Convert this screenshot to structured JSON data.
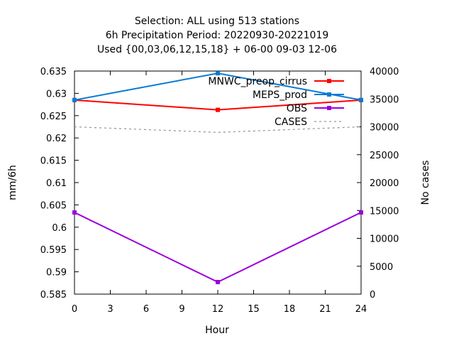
{
  "chart_data": {
    "type": "line",
    "title": [
      "Selection: ALL using   513 stations",
      "6h Precipitation    Period: 20220930-20221019",
      "Used {00,03,06,12,15,18} + 06-00 09-03 12-06"
    ],
    "xlabel": "Hour",
    "ylabel": "mm/6h",
    "y2label": "No cases",
    "x": [
      0,
      12,
      24
    ],
    "xlim": [
      0,
      24
    ],
    "xticks": [
      "0",
      "3",
      "6",
      "9",
      "12",
      "15",
      "18",
      "21",
      "24"
    ],
    "ylim": [
      0.585,
      0.635
    ],
    "yticks": [
      "0.585",
      "0.59",
      "0.595",
      "0.6",
      "0.605",
      "0.61",
      "0.615",
      "0.62",
      "0.625",
      "0.63",
      "0.635"
    ],
    "y2lim": [
      0,
      40000
    ],
    "y2ticks": [
      "0",
      "5000",
      "10000",
      "15000",
      "20000",
      "25000",
      "30000",
      "35000",
      "40000"
    ],
    "grid": false,
    "legend_position": "top-right",
    "series": [
      {
        "name": "MNWC_preop_cirrus",
        "color": "#ff0000",
        "marker": "square",
        "axis": "y",
        "values": [
          0.6285,
          0.6263,
          0.6285
        ]
      },
      {
        "name": "MEPS_prod",
        "color": "#0a7ad4",
        "marker": "square",
        "axis": "y",
        "values": [
          0.6285,
          0.6345,
          0.6285
        ]
      },
      {
        "name": "OBS",
        "color": "#9900dd",
        "marker": "square",
        "axis": "y",
        "values": [
          0.6033,
          0.5877,
          0.6033
        ]
      },
      {
        "name": "CASES",
        "color": "#999999",
        "marker": "none",
        "dashed": true,
        "axis": "y2",
        "values": [
          30000,
          29000,
          30000
        ]
      }
    ]
  }
}
